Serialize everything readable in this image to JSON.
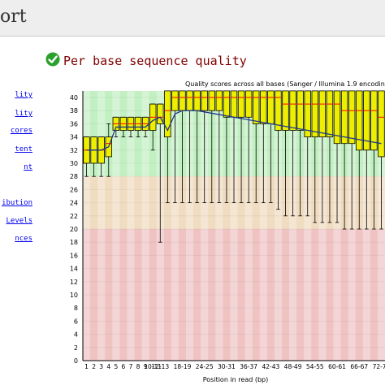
{
  "header": {
    "title": "ort"
  },
  "sidebar": {
    "items": [
      {
        "label": "lity"
      },
      {
        "label": "lity"
      },
      {
        "label": "cores"
      },
      {
        "label": "tent"
      },
      {
        "label": "nt"
      },
      {
        "label": "ibution"
      },
      {
        "label": "Levels"
      },
      {
        "label": "nces"
      }
    ]
  },
  "module": {
    "title": "Per base sequence quality",
    "status_icon": "check-circle-icon",
    "status_color": "#2ca02c"
  },
  "colors": {
    "good_zone": "#c3f0c3",
    "ok_zone": "#f0dcc0",
    "bad_zone": "#f0c3c3",
    "box_fill": "#eeee00",
    "median": "#ff0000",
    "mean_line": "#1c3a8a"
  },
  "chart_data": {
    "type": "box",
    "title": "Quality scores across all bases (Sanger / Illumina 1.9 encoding)",
    "xlabel": "Position in read (bp)",
    "ylabel": "",
    "ylim": [
      0,
      40
    ],
    "yticks": [
      0,
      2,
      4,
      6,
      8,
      10,
      12,
      14,
      16,
      18,
      20,
      22,
      24,
      26,
      28,
      30,
      32,
      34,
      36,
      38,
      40
    ],
    "zones": [
      {
        "name": "good",
        "from": 28,
        "to": 41
      },
      {
        "name": "ok",
        "from": 20,
        "to": 28
      },
      {
        "name": "bad",
        "from": 0,
        "to": 20
      }
    ],
    "categories": [
      "1",
      "2",
      "3",
      "4",
      "5",
      "6",
      "7",
      "8",
      "9",
      "10-11",
      "12-13",
      "14-15",
      "16-17",
      "18-19",
      "20-21",
      "22-23",
      "24-25",
      "26-27",
      "28-29",
      "30-31",
      "32-33",
      "34-35",
      "36-37",
      "38-39",
      "40-41",
      "42-43",
      "44-45",
      "46-47",
      "48-49",
      "50-51",
      "52-53",
      "54-55",
      "56-57",
      "58-59",
      "60-61",
      "62-63",
      "64-65",
      "66-67",
      "68-69",
      "70-71",
      "72-73"
    ],
    "xtick_labels": [
      "1",
      "2",
      "3",
      "4",
      "5",
      "6",
      "7",
      "8",
      "9",
      "10-11",
      "12-13",
      "18-19",
      "24-25",
      "30-31",
      "36-37",
      "42-43",
      "48-49",
      "54-55",
      "60-61",
      "66-67",
      "72-73"
    ],
    "lower_whisker": [
      28,
      28,
      28,
      28,
      34,
      34,
      34,
      34,
      34,
      32,
      18,
      24,
      24,
      24,
      24,
      24,
      24,
      24,
      24,
      24,
      24,
      24,
      24,
      24,
      24,
      24,
      23,
      22,
      22,
      22,
      22,
      21,
      21,
      21,
      21,
      20,
      20,
      20,
      20,
      20,
      20
    ],
    "q1": [
      30,
      30,
      30,
      31,
      35,
      35,
      35,
      35,
      35,
      35,
      36,
      34,
      38,
      38,
      38,
      38,
      38,
      38,
      38,
      37,
      37,
      37,
      37,
      36,
      36,
      36,
      35,
      35,
      35,
      35,
      34,
      34,
      34,
      34,
      33,
      33,
      33,
      32,
      32,
      32,
      31
    ],
    "median": [
      32,
      32,
      32,
      33,
      36,
      36,
      36,
      36,
      36,
      37,
      37,
      38,
      40,
      40,
      40,
      40,
      40,
      40,
      40,
      40,
      40,
      40,
      40,
      40,
      40,
      40,
      40,
      39,
      39,
      39,
      39,
      39,
      39,
      39,
      39,
      38,
      38,
      38,
      38,
      38,
      37
    ],
    "q3": [
      34,
      34,
      34,
      34,
      37,
      37,
      37,
      37,
      37,
      39,
      39,
      41,
      41,
      41,
      41,
      41,
      41,
      41,
      41,
      41,
      41,
      41,
      41,
      41,
      41,
      41,
      41,
      41,
      41,
      41,
      41,
      41,
      41,
      41,
      41,
      41,
      41,
      41,
      41,
      41,
      41
    ],
    "upper_whisker": [
      34,
      34,
      34,
      36,
      37,
      37,
      37,
      37,
      37,
      39,
      39,
      41,
      41,
      41,
      41,
      41,
      41,
      41,
      41,
      41,
      41,
      41,
      41,
      41,
      41,
      41,
      41,
      41,
      41,
      41,
      41,
      41,
      41,
      41,
      41,
      41,
      41,
      41,
      41,
      41,
      41
    ],
    "mean": [
      32,
      32,
      32,
      32.5,
      35.5,
      35.5,
      35.5,
      35.5,
      35.5,
      36.5,
      37,
      35,
      37.5,
      38,
      38,
      38,
      37.8,
      37.6,
      37.4,
      37.2,
      37,
      36.8,
      36.6,
      36.4,
      36.2,
      36,
      35.8,
      35.6,
      35.4,
      35.2,
      35,
      34.8,
      34.6,
      34.4,
      34.2,
      34,
      33.8,
      33.6,
      33.4,
      33.2,
      33
    ]
  }
}
